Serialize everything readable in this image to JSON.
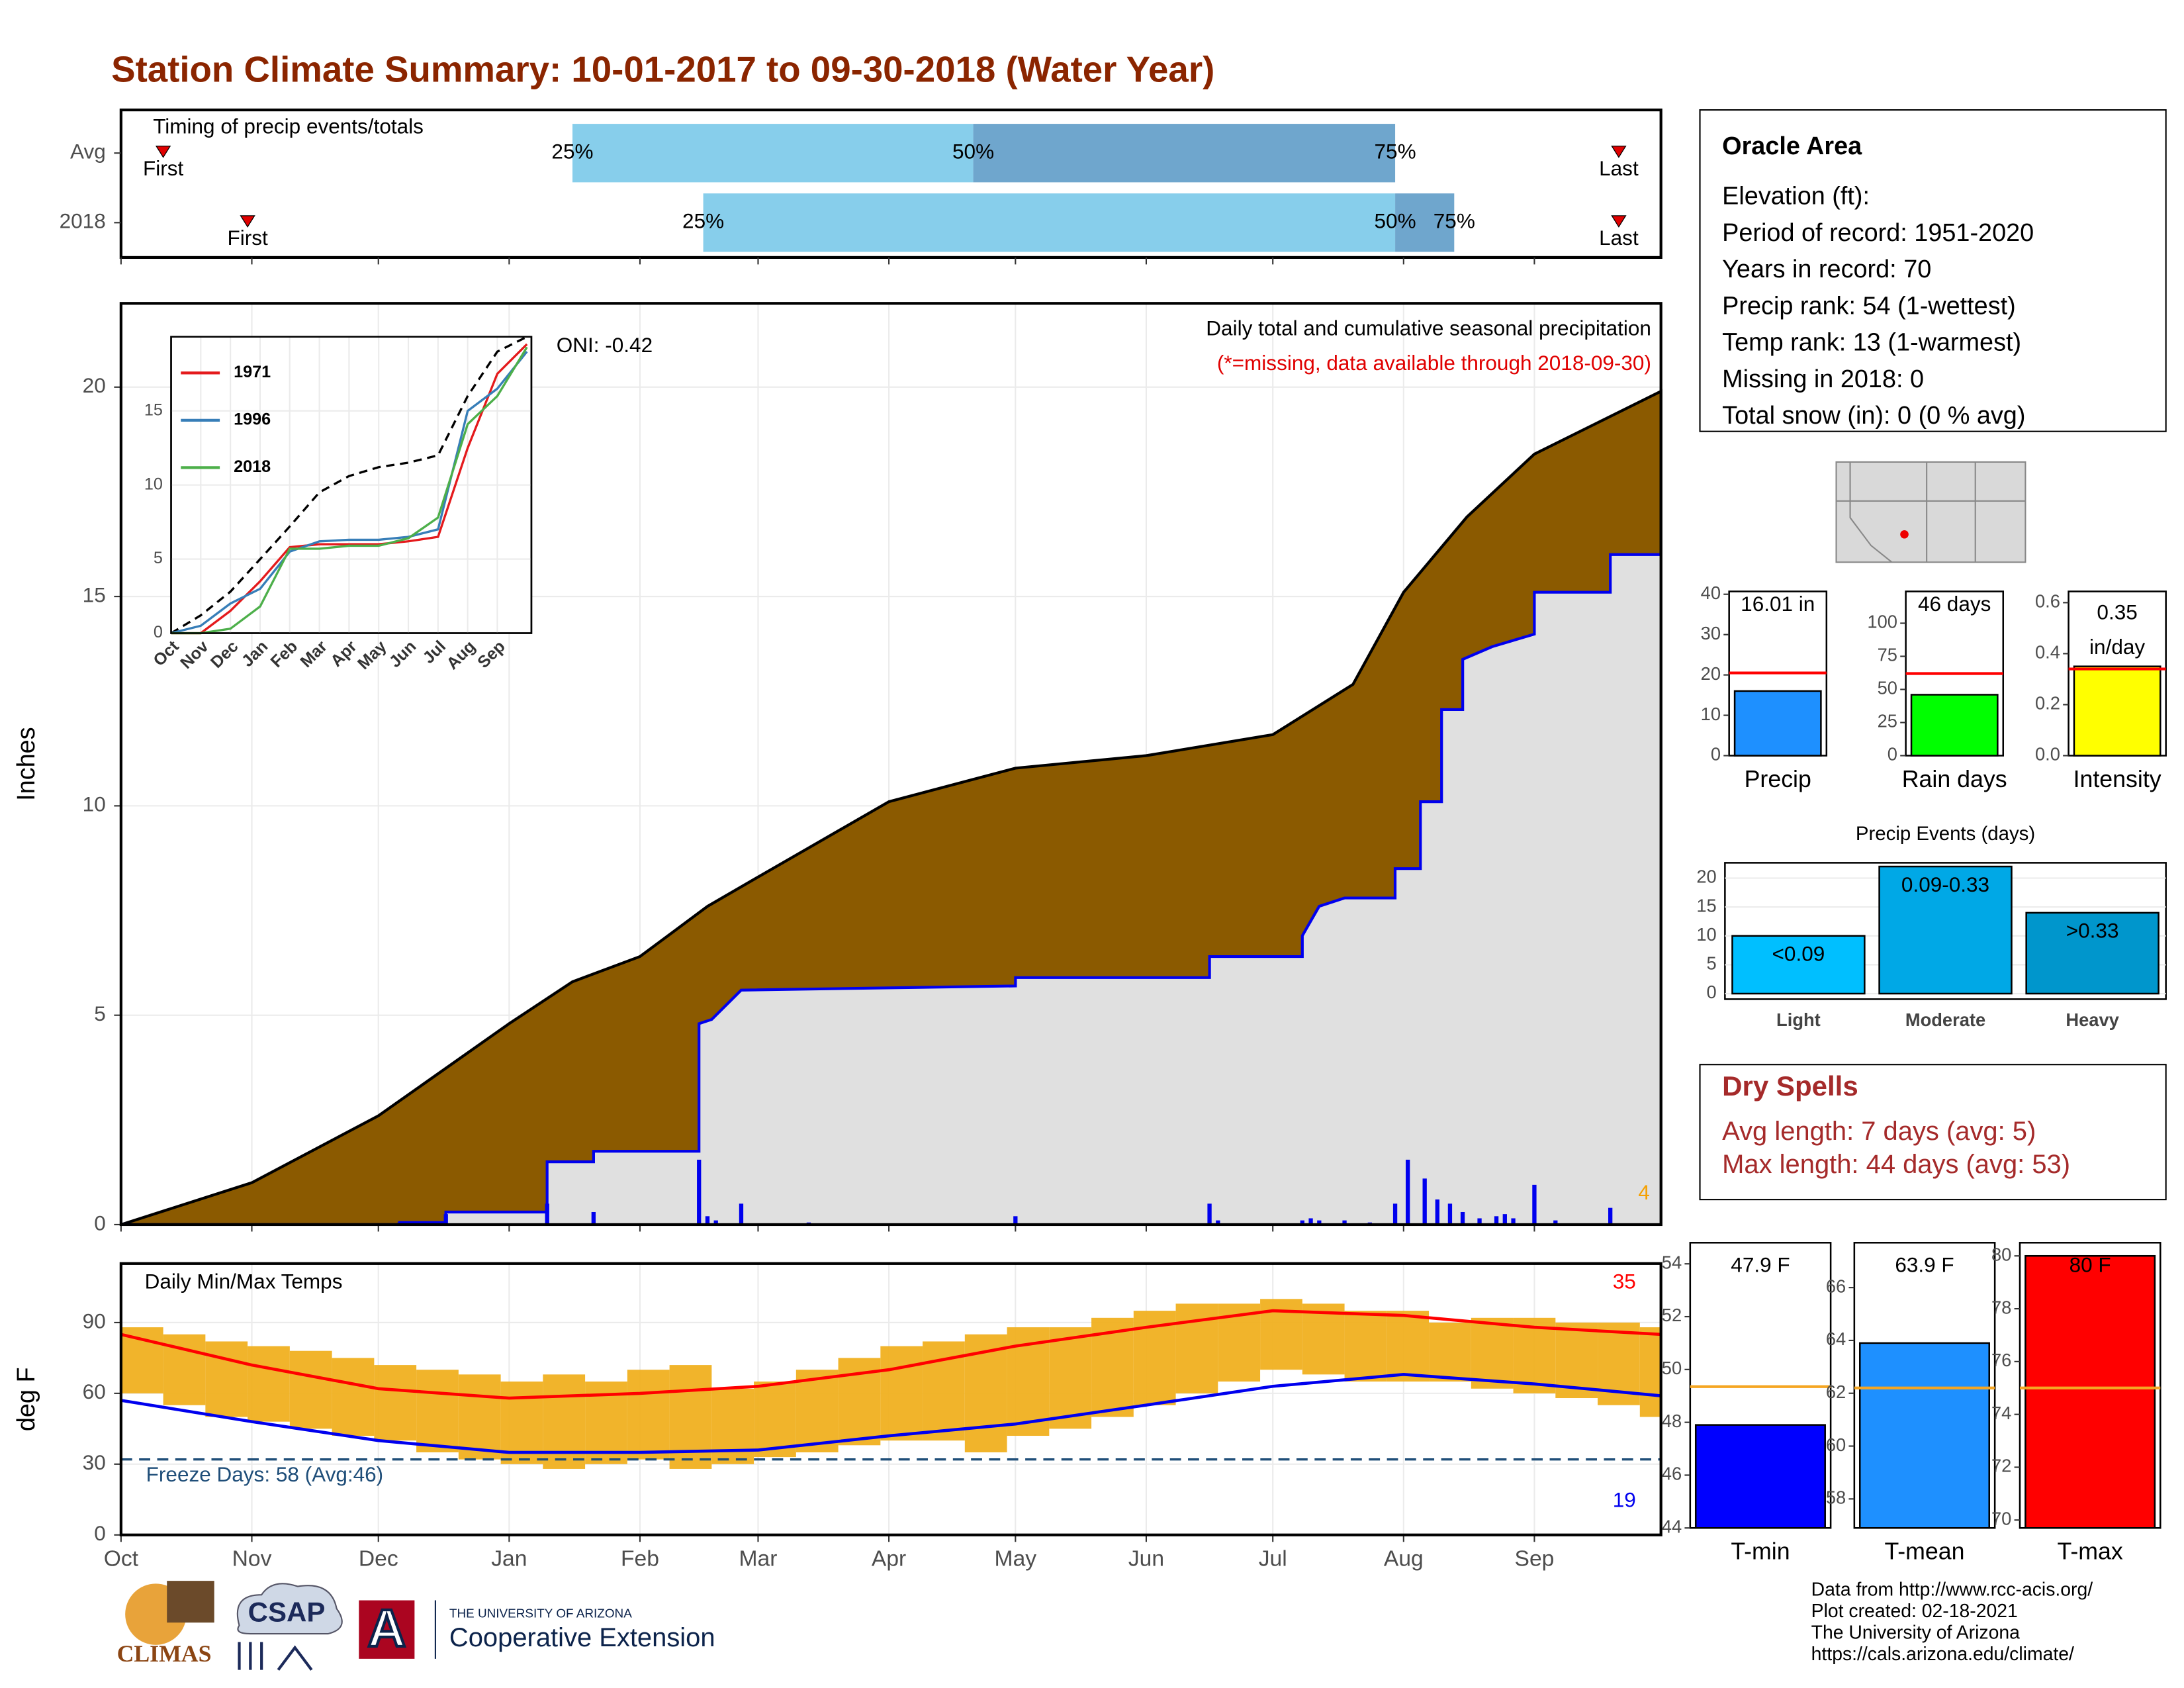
{
  "title": "Station Climate Summary: 10-01-2017 to 09-30-2018 (Water Year)",
  "xlim": [
    0,
    365
  ],
  "months": [
    {
      "value": 0,
      "label": "Oct"
    },
    {
      "value": 31,
      "label": "Nov"
    },
    {
      "value": 61,
      "label": "Dec"
    },
    {
      "value": 92,
      "label": "Jan"
    },
    {
      "value": 123,
      "label": "Feb"
    },
    {
      "value": 151,
      "label": "Mar"
    },
    {
      "value": 182,
      "label": "Apr"
    },
    {
      "value": 212,
      "label": "May"
    },
    {
      "value": 243,
      "label": "Jun"
    },
    {
      "value": 273,
      "label": "Jul"
    },
    {
      "value": 304,
      "label": "Aug"
    },
    {
      "value": 335,
      "label": "Sep"
    }
  ],
  "timing": {
    "label": "Timing of precip events/totals",
    "first_label": "First",
    "last_label": "Last",
    "p_labels": [
      "25%",
      "50%",
      "75%"
    ],
    "light": "#87ceeb",
    "dark": "#6fa6cd",
    "marker": "#e00000",
    "rows": [
      {
        "name": "Avg",
        "first": 10,
        "p25": 107,
        "p50": 202,
        "p75": 302,
        "last": 355
      },
      {
        "name": "2018",
        "first": 30,
        "p25": 138,
        "p50": 302,
        "p75": 316,
        "last": 355
      }
    ]
  },
  "precip": {
    "title": "Daily total and cumulative seasonal precipitation",
    "note": "(*=missing, data available through 2018-09-30)",
    "oni": "ONI: -0.42",
    "count": 4,
    "ylabel": "Inches",
    "ylim": [
      0,
      22
    ],
    "yticks": [
      0,
      5,
      10,
      15,
      20
    ],
    "normal_fill": "#8b5a00",
    "observed_fill": "#e0e0e0",
    "line_color": "#0000ee",
    "count_color": "#f5a000",
    "normal": {
      "x": [
        0,
        31,
        61,
        92,
        107,
        123,
        139,
        151,
        182,
        212,
        243,
        273,
        292,
        304,
        319,
        335,
        365
      ],
      "values": [
        0,
        1.0,
        2.6,
        4.8,
        5.8,
        6.4,
        7.6,
        8.3,
        10.1,
        10.9,
        11.2,
        11.7,
        12.9,
        15.1,
        16.9,
        18.4,
        19.9
      ]
    },
    "observed": {
      "x": [
        0,
        66,
        66,
        77,
        77,
        101,
        101,
        112,
        112,
        137,
        137,
        140,
        147,
        212,
        212,
        258,
        258,
        280,
        280,
        284,
        290,
        302,
        302,
        308,
        308,
        313,
        313,
        318,
        318,
        325,
        335,
        335,
        353,
        353,
        365
      ],
      "values": [
        0,
        0,
        0.05,
        0.05,
        0.3,
        0.3,
        1.5,
        1.5,
        1.75,
        1.75,
        4.8,
        4.9,
        5.6,
        5.7,
        5.9,
        5.9,
        6.4,
        6.4,
        6.9,
        7.6,
        7.8,
        7.8,
        8.5,
        8.5,
        10.1,
        10.1,
        12.3,
        12.3,
        13.5,
        13.8,
        14.1,
        15.1,
        15.1,
        16.0,
        16.0
      ]
    },
    "daily": {
      "x": [
        66,
        77,
        101,
        112,
        137,
        139,
        141,
        147,
        163,
        212,
        258,
        260,
        280,
        282,
        284,
        290,
        296,
        302,
        305,
        309,
        312,
        315,
        318,
        322,
        326,
        328,
        330,
        335,
        340,
        353
      ],
      "values": [
        0.05,
        0.25,
        0.5,
        0.3,
        1.55,
        0.2,
        0.1,
        0.5,
        0.05,
        0.2,
        0.5,
        0.1,
        0.1,
        0.15,
        0.1,
        0.1,
        0.05,
        0.5,
        1.55,
        1.1,
        0.6,
        0.5,
        0.3,
        0.15,
        0.2,
        0.25,
        0.15,
        0.95,
        0.1,
        0.4
      ]
    }
  },
  "inset": {
    "xlim": [
      0,
      12.15
    ],
    "ylim": [
      0,
      20
    ],
    "yticks": [
      0,
      5,
      10,
      15
    ],
    "xticks": [
      {
        "value": 0,
        "label": "Oct"
      },
      {
        "value": 1,
        "label": "Nov"
      },
      {
        "value": 2,
        "label": "Dec"
      },
      {
        "value": 3,
        "label": "Jan"
      },
      {
        "value": 4,
        "label": "Feb"
      },
      {
        "value": 5,
        "label": "Mar"
      },
      {
        "value": 6,
        "label": "Apr"
      },
      {
        "value": 7,
        "label": "May"
      },
      {
        "value": 8,
        "label": "Jun"
      },
      {
        "value": 9,
        "label": "Jul"
      },
      {
        "value": 10,
        "label": "Aug"
      },
      {
        "value": 11,
        "label": "Sep"
      }
    ],
    "x": [
      0,
      1,
      2,
      3,
      4,
      5,
      6,
      7,
      8,
      9,
      10,
      11,
      12
    ],
    "average": [
      0,
      1.2,
      2.8,
      5.0,
      7.2,
      9.5,
      10.6,
      11.2,
      11.5,
      12.0,
      16.0,
      19.0,
      20.0
    ],
    "series": [
      {
        "name": "1971",
        "color": "#e41a1c",
        "values": [
          0,
          0,
          1.5,
          3.5,
          5.8,
          6.0,
          6.0,
          6.0,
          6.2,
          6.5,
          12.5,
          17.5,
          19.5
        ]
      },
      {
        "name": "1996",
        "color": "#377eb8",
        "values": [
          0,
          0.5,
          2.0,
          3.0,
          5.5,
          6.2,
          6.3,
          6.3,
          6.5,
          7.0,
          15.0,
          16.5,
          19.0
        ]
      },
      {
        "name": "2018",
        "color": "#4daf4a",
        "values": [
          0,
          0,
          0.3,
          1.8,
          5.7,
          5.7,
          5.9,
          5.9,
          6.4,
          7.8,
          14.1,
          16.0,
          19.3
        ]
      }
    ]
  },
  "temps": {
    "title": "Daily Min/Max Temps",
    "ylabel": "deg F",
    "ylim": [
      0,
      115
    ],
    "yticks": [
      0,
      30,
      60,
      90
    ],
    "freeze": 32,
    "freeze_label": "Freeze Days: 58 (Avg:46)",
    "hot_count": 35,
    "cold_count": 19,
    "range_color": "#f0b020",
    "max_color": "#ff0000",
    "min_color": "#0000ee",
    "freeze_color": "#1f4e79",
    "range_days": [
      0,
      10,
      20,
      30,
      40,
      50,
      60,
      70,
      80,
      90,
      100,
      110,
      120,
      130,
      140,
      150,
      160,
      170,
      180,
      190,
      200,
      210,
      220,
      230,
      240,
      250,
      260,
      270,
      280,
      290,
      300,
      310,
      320,
      330,
      340,
      350,
      360
    ],
    "range_low": [
      60,
      55,
      50,
      48,
      45,
      42,
      40,
      35,
      32,
      30,
      28,
      30,
      32,
      28,
      30,
      33,
      35,
      38,
      40,
      40,
      35,
      42,
      45,
      50,
      55,
      60,
      65,
      70,
      68,
      65,
      65,
      65,
      62,
      60,
      58,
      55,
      50
    ],
    "range_high": [
      88,
      85,
      82,
      80,
      78,
      75,
      72,
      70,
      68,
      65,
      68,
      65,
      70,
      72,
      62,
      65,
      70,
      75,
      80,
      82,
      85,
      88,
      88,
      92,
      95,
      98,
      98,
      100,
      98,
      95,
      95,
      90,
      92,
      92,
      90,
      90,
      88
    ],
    "avg_days": [
      0,
      31,
      61,
      92,
      123,
      151,
      182,
      212,
      243,
      273,
      304,
      335,
      365
    ],
    "avg_max": [
      85,
      72,
      62,
      58,
      60,
      63,
      70,
      80,
      88,
      95,
      93,
      88,
      85
    ],
    "avg_min": [
      57,
      48,
      40,
      35,
      35,
      36,
      42,
      47,
      55,
      63,
      68,
      64,
      59
    ]
  },
  "info": {
    "title": "Oracle Area",
    "lines": [
      "Elevation (ft):",
      "Period of record: 1951-2020",
      "Years in record: 70",
      "Precip rank: 54 (1-wettest)",
      "Temp rank: 13 (1-warmest)",
      "Missing in 2018: 0",
      "Total snow (in): 0 (0 % avg)"
    ]
  },
  "summary_bars": [
    {
      "label": "Precip",
      "value": 16.01,
      "value_label": "16.01 in",
      "avg": 20.5,
      "ylim": [
        0,
        40.7
      ],
      "yticks": [
        0,
        10,
        20,
        30,
        40
      ],
      "color": "#1e90ff",
      "avg_color": "#ff0000"
    },
    {
      "label": "Rain days",
      "value": 46,
      "value_label": "46 days",
      "avg": 62,
      "ylim": [
        0,
        124
      ],
      "yticks": [
        0,
        25,
        50,
        75,
        100
      ],
      "color": "#00ff00",
      "avg_color": "#ff0000"
    },
    {
      "label": "Intensity",
      "value": 0.35,
      "unit": "in/day",
      "avg": 0.34,
      "ylim": [
        0,
        0.644
      ],
      "yticks": [
        {
          "value": 0,
          "label": "0.0"
        },
        0.2,
        0.4,
        0.6
      ],
      "color": "#ffff00",
      "avg_color": "#ff0000"
    }
  ],
  "events": {
    "title": "Precip Events (days)",
    "ylim": [
      -0.96,
      22.65
    ],
    "yticks": [
      0,
      5,
      10,
      15,
      20
    ],
    "categories": [
      "Light",
      "Moderate",
      "Heavy"
    ],
    "values": [
      10,
      22,
      14
    ],
    "value_labels": [
      "<0.09",
      "0.09-0.33",
      ">0.33"
    ],
    "colors": [
      "#00bfff",
      "#00a8e6",
      "#0096cc"
    ]
  },
  "dry_spells": {
    "title": "Dry Spells",
    "lines": [
      "Avg length: 7 days (avg: 5)",
      "Max length: 44 days (avg: 53)"
    ],
    "color": "#a52a2a"
  },
  "temp_bars": [
    {
      "label": "T-min",
      "value": 47.9,
      "value_label": "47.9 F",
      "avg": 49.35,
      "ylim": [
        44,
        54.8
      ],
      "yticks": [
        44,
        46,
        48,
        50,
        52,
        54
      ],
      "color": "#0000ff",
      "avg_color": "#f5a623"
    },
    {
      "label": "T-mean",
      "value": 63.9,
      "value_label": "63.9 F",
      "avg": 62.2,
      "ylim": [
        56.9,
        67.7
      ],
      "yticks": [
        58,
        60,
        62,
        64,
        66
      ],
      "color": "#1e90ff",
      "avg_color": "#f5a623"
    },
    {
      "label": "T-max",
      "value": 80,
      "value_label": "80 F",
      "avg": 75,
      "ylim": [
        69.7,
        80.5
      ],
      "yticks": [
        70,
        72,
        74,
        76,
        78,
        80
      ],
      "color": "#ff0000",
      "avg_color": "#f5a623"
    }
  ],
  "footer": {
    "lines": [
      "Data from http://www.rcc-acis.org/",
      "Plot created: 02-18-2021",
      "The University of Arizona",
      "https://cals.arizona.edu/climate/"
    ],
    "logos": {
      "climas": "CLIMAS",
      "csap": "CSAP",
      "ua": "A",
      "ua_small": "THE UNIVERSITY OF ARIZONA",
      "ua_ext": "Cooperative Extension"
    }
  }
}
